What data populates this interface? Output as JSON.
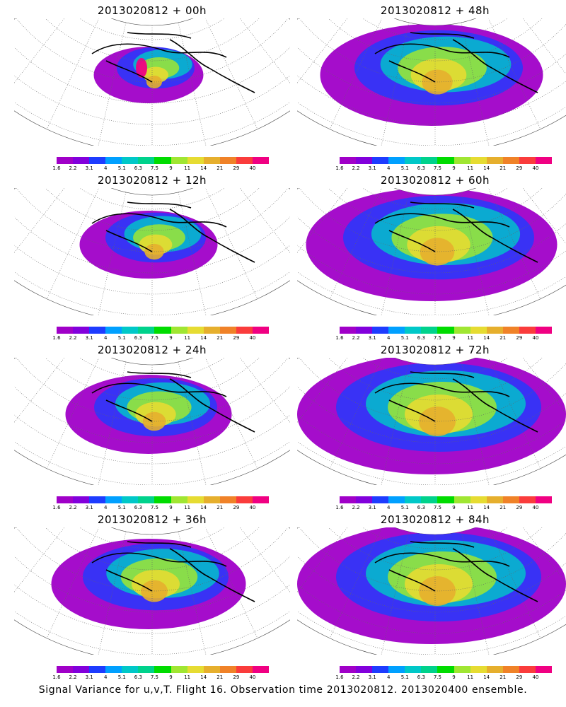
{
  "panels": [
    {
      "title": "2013020812 + 00h",
      "lead": 0
    },
    {
      "title": "2013020812 + 48h",
      "lead": 48
    },
    {
      "title": "2013020812 + 12h",
      "lead": 12
    },
    {
      "title": "2013020812 + 60h",
      "lead": 60
    },
    {
      "title": "2013020812 + 24h",
      "lead": 24
    },
    {
      "title": "2013020812 + 72h",
      "lead": 72
    },
    {
      "title": "2013020812 + 36h",
      "lead": 36
    },
    {
      "title": "2013020812 + 84h",
      "lead": 84
    }
  ],
  "colorbar": {
    "levels": [
      "1.6",
      "2.2",
      "3.1",
      "4",
      "5.1",
      "6.3",
      "7.5",
      "9",
      "11",
      "14",
      "21",
      "29",
      "40"
    ],
    "colors": [
      "#a000c8",
      "#8200dc",
      "#1e3cff",
      "#00a0ff",
      "#00c8c8",
      "#00d28c",
      "#00dc00",
      "#a0e632",
      "#e6dc32",
      "#e6af2d",
      "#f08228",
      "#fa3c3c",
      "#f00082"
    ]
  },
  "caption": "Signal Variance for u,v,T. Flight 16. Observation time 2013020812. 2013020400 ensemble."
}
